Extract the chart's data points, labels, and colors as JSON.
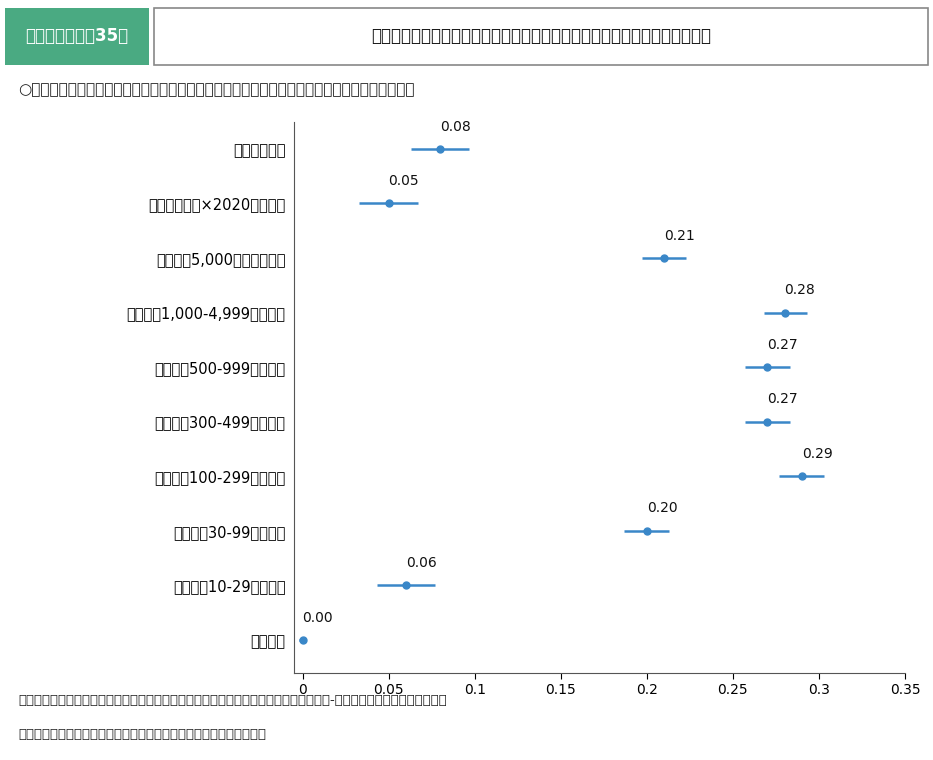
{
  "title_box": "第２－（３）－35図",
  "title_main": "同一労働同一賃金による非正規雇用労働者への賞与支給事業所割合への影響",
  "subtitle": "○　同一労働同一賃金は非正規雇用労働者への賞与支給事業所割合を約５％上昇させた可能性。",
  "footer_line1": "資料出所　厚生労働省「賃金構造基本統計調査」、総務省・経済産業省「経済センサス-活動調査」の個票を厚生労働省",
  "footer_line2": "　ＥＢＰＭの推進に係る若手・中堅プロジェクトチームにて独自集計",
  "categories": [
    "処置群ダミー",
    "処置群ダミー×2020年ダミー",
    "企業規模5,000人以上ダミー",
    "企業規模1,000-4,999人ダミー",
    "企業規模500-999人ダミー",
    "企業規模300-499人ダミー",
    "企業規模100-299人ダミー",
    "企業規模30-99人ダミー",
    "企業規模10-29人ダミー",
    "トレンド"
  ],
  "values": [
    0.08,
    0.05,
    0.21,
    0.28,
    0.27,
    0.27,
    0.29,
    0.2,
    0.06,
    0.0
  ],
  "ci_low": [
    0.063,
    0.033,
    0.197,
    0.268,
    0.257,
    0.257,
    0.277,
    0.187,
    0.043,
    -0.002
  ],
  "ci_high": [
    0.097,
    0.067,
    0.223,
    0.293,
    0.283,
    0.283,
    0.303,
    0.213,
    0.077,
    0.002
  ],
  "point_color": "#3a87c8",
  "line_color": "#3a87c8",
  "xlim": [
    -0.005,
    0.35
  ],
  "xticks": [
    0,
    0.05,
    0.1,
    0.15,
    0.2,
    0.25,
    0.3,
    0.35
  ],
  "xtick_labels": [
    "0",
    "0.05",
    "0.1",
    "0.15",
    "0.2",
    "0.25",
    "0.3",
    "0.35"
  ],
  "title_box_bg": "#4aaa82",
  "title_box_text_color": "#ffffff",
  "title_border_color": "#888888",
  "background_color": "#ffffff"
}
